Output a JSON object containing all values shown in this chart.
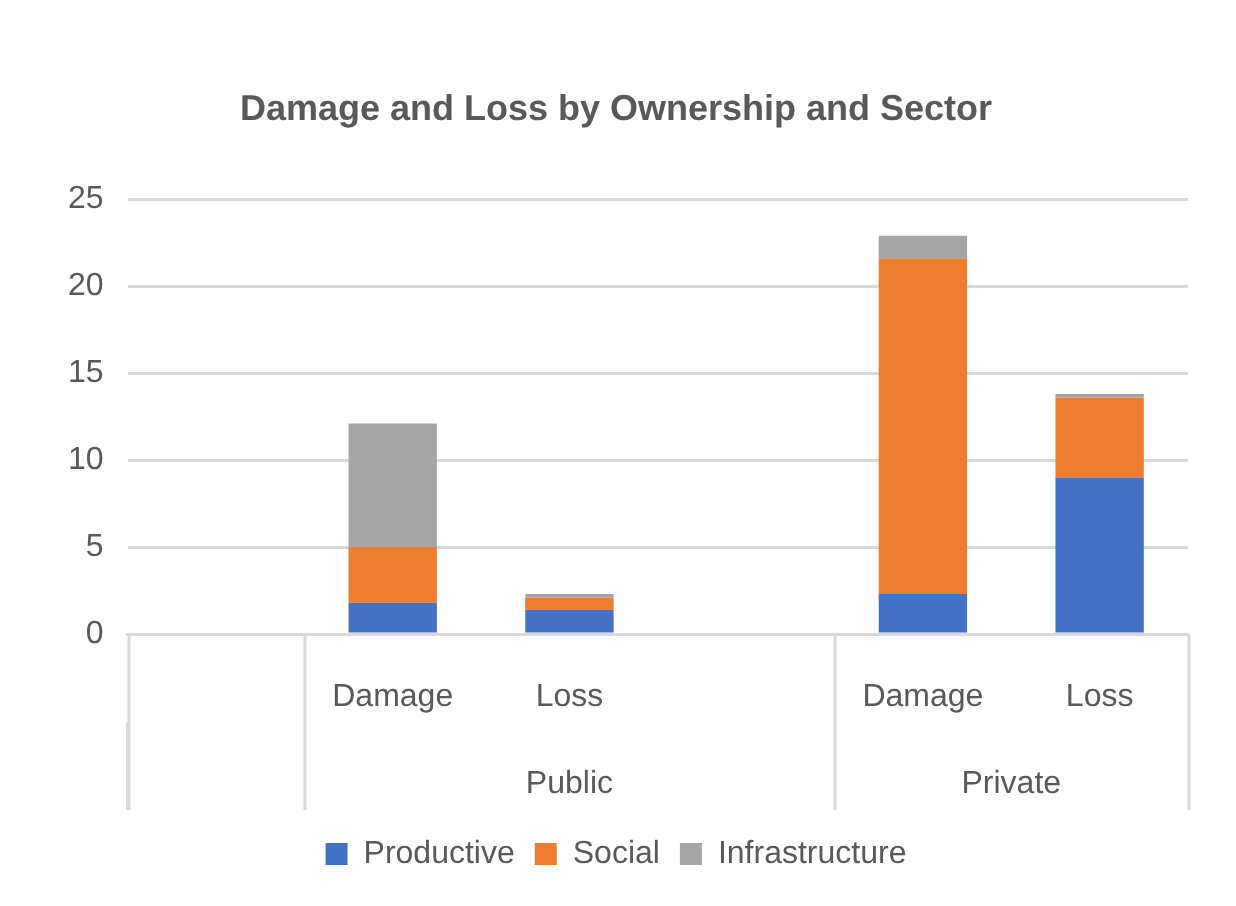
{
  "chart_data": {
    "type": "bar",
    "title": "Damage and Loss by Ownership and Sector",
    "stacked": true,
    "categories": [
      null,
      "Damage",
      "Loss",
      null,
      "Damage",
      "Loss"
    ],
    "annotations": [
      "Public",
      "Private"
    ],
    "series": [
      {
        "name": "Productive",
        "color": "#4472c4",
        "values": [
          null,
          1.8,
          1.4,
          null,
          2.3,
          9
        ]
      },
      {
        "name": "Social",
        "color": "#ed7d31",
        "values": [
          null,
          3.2,
          0.7,
          null,
          19.3,
          4.6
        ]
      },
      {
        "name": "Infrastructure",
        "color": "#a5a5a5",
        "values": [
          null,
          7.1,
          0.2,
          null,
          1.3,
          0.2
        ]
      }
    ],
    "ylim": [
      0,
      25
    ],
    "yticks": [
      0,
      5,
      10,
      15,
      20,
      25
    ],
    "grid": "y",
    "legend": "bottom"
  }
}
